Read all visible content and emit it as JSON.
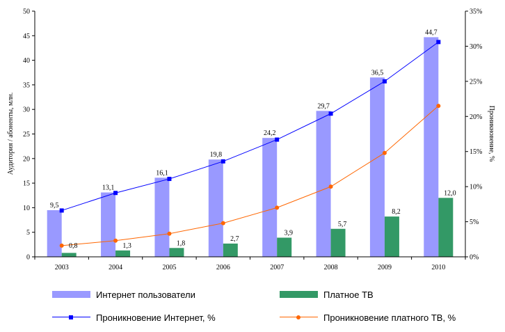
{
  "chart_data": {
    "type": "bar",
    "title": "",
    "categories": [
      "2003",
      "2004",
      "2005",
      "2006",
      "2007",
      "2008",
      "2009",
      "2010"
    ],
    "xlabel": "",
    "ylabel": "Аудитория / абоненты, млн.",
    "ylabel_right": "Проникновение, %",
    "ylim": [
      0,
      50
    ],
    "yticks": [
      "0",
      "5",
      "10",
      "15",
      "20",
      "25",
      "30",
      "35",
      "40",
      "45",
      "50"
    ],
    "ylim_right": [
      0,
      35
    ],
    "yticks_right": [
      "0%",
      "5%",
      "10%",
      "15%",
      "20%",
      "25%",
      "30%",
      "35%"
    ],
    "grid": false,
    "legend_position": "bottom",
    "series": [
      {
        "name": "Интернет пользователи",
        "type": "bar",
        "axis": "left",
        "color": "#9999ff",
        "values": [
          9.5,
          13.1,
          16.1,
          19.8,
          24.2,
          29.7,
          36.5,
          44.7
        ],
        "labels": [
          "9,5",
          "13,1",
          "16,1",
          "19,8",
          "24,2",
          "29,7",
          "36,5",
          "44,7"
        ]
      },
      {
        "name": "Платное ТВ",
        "type": "bar",
        "axis": "left",
        "color": "#339966",
        "values": [
          0.8,
          1.3,
          1.8,
          2.7,
          3.9,
          5.7,
          8.2,
          12.0
        ],
        "labels": [
          "0,8",
          "1,3",
          "1,8",
          "2,7",
          "3,9",
          "5,7",
          "8,2",
          "12,0"
        ]
      },
      {
        "name": "Проникновение Интернет, %",
        "type": "line",
        "axis": "right",
        "color": "#0000ff",
        "marker": "square",
        "values": [
          6.6,
          9.1,
          11.1,
          13.6,
          16.7,
          20.4,
          25.0,
          30.6
        ]
      },
      {
        "name": "Проникновение платного ТВ, %",
        "type": "line",
        "axis": "right",
        "color": "#ff6600",
        "marker": "circle",
        "values": [
          1.6,
          2.3,
          3.3,
          4.8,
          7.0,
          10.0,
          14.8,
          21.5
        ]
      }
    ]
  }
}
